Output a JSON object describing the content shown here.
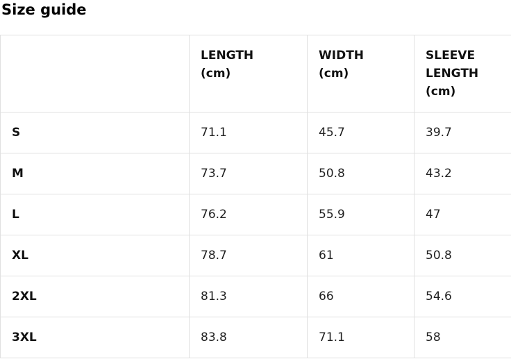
{
  "title": "Size guide",
  "table": {
    "headers": {
      "size": "",
      "length": "LENGTH\n(cm)",
      "width": "WIDTH\n(cm)",
      "sleeve": "SLEEVE\nLENGTH\n(cm)"
    },
    "rows": [
      {
        "size": "S",
        "length": "71.1",
        "width": "45.7",
        "sleeve": "39.7"
      },
      {
        "size": "M",
        "length": "73.7",
        "width": "50.8",
        "sleeve": "43.2"
      },
      {
        "size": "L",
        "length": "76.2",
        "width": "55.9",
        "sleeve": "47"
      },
      {
        "size": "XL",
        "length": "78.7",
        "width": "61",
        "sleeve": "50.8"
      },
      {
        "size": "2XL",
        "length": "81.3",
        "width": "66",
        "sleeve": "54.6"
      },
      {
        "size": "3XL",
        "length": "83.8",
        "width": "71.1",
        "sleeve": "58"
      }
    ]
  },
  "colors": {
    "border": "#e0e0e0",
    "heading_text": "#111111",
    "value_text": "#212121",
    "background": "#ffffff"
  }
}
